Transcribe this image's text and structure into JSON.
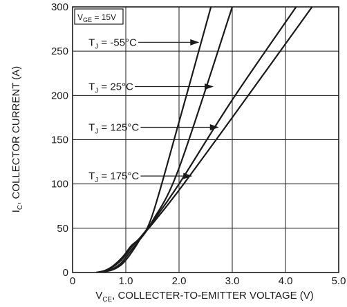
{
  "chart_data": {
    "type": "line",
    "title": "",
    "xlabel": {
      "main": "V",
      "sub": "CE",
      "rest": ", COLLECTER-TO-EMITTER VOLTAGE (V)"
    },
    "ylabel": {
      "main": "I",
      "sub": "C",
      "rest": ", COLLECTOR CURRENT (A)"
    },
    "xlim": [
      0,
      5
    ],
    "ylim": [
      0,
      300
    ],
    "xticks": [
      0,
      1,
      2,
      3,
      4,
      5
    ],
    "xtick_labels": [
      "0",
      "1.0",
      "2.0",
      "3.0",
      "4.0",
      "5.0"
    ],
    "yticks": [
      0,
      50,
      100,
      150,
      200,
      250,
      300
    ],
    "ytick_labels": [
      "0",
      "50",
      "100",
      "150",
      "200",
      "250",
      "300"
    ],
    "grid": true,
    "condition_box": {
      "main": "V",
      "sub": "GE",
      "rest": " = 15V"
    },
    "series": [
      {
        "name": "T_J = -55°C",
        "label": {
          "main": "T",
          "sub": "J",
          "rest": " = -55°C"
        },
        "x": [
          0.45,
          0.6,
          0.75,
          0.9,
          1.0,
          1.1,
          1.25,
          1.5,
          2.0,
          2.6
        ],
        "y": [
          0,
          1,
          3,
          8,
          14,
          22,
          36,
          65,
          170,
          300
        ]
      },
      {
        "name": "T_J = 25°C",
        "label": {
          "main": "T",
          "sub": "J",
          "rest": " = 25°C"
        },
        "x": [
          0.45,
          0.6,
          0.75,
          0.9,
          1.0,
          1.1,
          1.25,
          1.5,
          2.0,
          3.0
        ],
        "y": [
          0,
          1,
          4,
          10,
          17,
          25,
          36,
          58,
          118,
          300
        ]
      },
      {
        "name": "T_J = 125°C",
        "label": {
          "main": "T",
          "sub": "J",
          "rest": " = 125°C"
        },
        "x": [
          0.45,
          0.6,
          0.75,
          0.9,
          1.0,
          1.1,
          1.25,
          1.5,
          2.0,
          3.0,
          4.2
        ],
        "y": [
          0,
          2,
          6,
          13,
          20,
          28,
          38,
          57,
          100,
          195,
          300
        ]
      },
      {
        "name": "T_J = 175°C",
        "label": {
          "main": "T",
          "sub": "J",
          "rest": " = 175°C"
        },
        "x": [
          0.45,
          0.6,
          0.75,
          0.9,
          1.0,
          1.1,
          1.25,
          1.5,
          2.0,
          3.0,
          4.5
        ],
        "y": [
          0,
          2,
          7,
          15,
          22,
          30,
          38,
          55,
          93,
          175,
          300
        ]
      }
    ],
    "annotations": [
      {
        "series": 0,
        "text_x": 0.3,
        "text_y": 260,
        "arrow_to": [
          2.38,
          260
        ]
      },
      {
        "series": 1,
        "text_x": 0.3,
        "text_y": 210,
        "arrow_to": [
          2.65,
          210
        ]
      },
      {
        "series": 2,
        "text_x": 0.3,
        "text_y": 164,
        "arrow_to": [
          2.75,
          164
        ]
      },
      {
        "series": 3,
        "text_x": 0.3,
        "text_y": 109,
        "arrow_to": [
          2.25,
          109
        ]
      }
    ]
  }
}
